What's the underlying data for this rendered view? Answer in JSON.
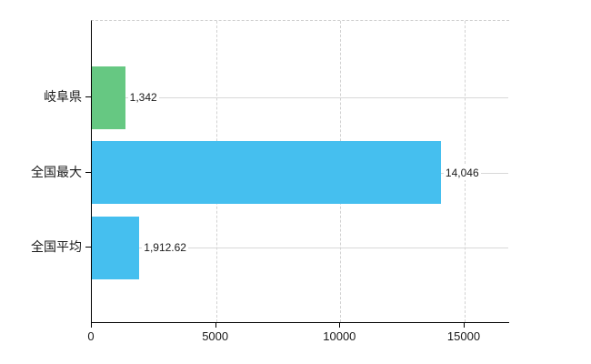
{
  "chart_data": {
    "type": "bar",
    "orientation": "horizontal",
    "title": "",
    "xlabel": "",
    "ylabel": "",
    "categories": [
      "岐阜県",
      "全国最大",
      "全国平均"
    ],
    "values": [
      1342,
      14046,
      1912.62
    ],
    "value_labels": [
      "1,342",
      "14,046",
      "1,912.62"
    ],
    "bar_colors": [
      "#66c882",
      "#45bfef",
      "#45bfef"
    ],
    "xticks": [
      0,
      5000,
      10000,
      15000
    ],
    "xtick_labels": [
      "0",
      "5000",
      "10000",
      "15000"
    ],
    "xlim": [
      0,
      16830
    ],
    "legend": "none",
    "grid": {
      "vertical": "dashed light gray at each xtick",
      "horizontal": "solid light gray line through each category center",
      "top_border": "dashed light gray"
    },
    "colors": {
      "background": "#ffffff",
      "axis": "#000000",
      "grid": "#d6d6d6",
      "text": "#1a1a1a"
    }
  }
}
